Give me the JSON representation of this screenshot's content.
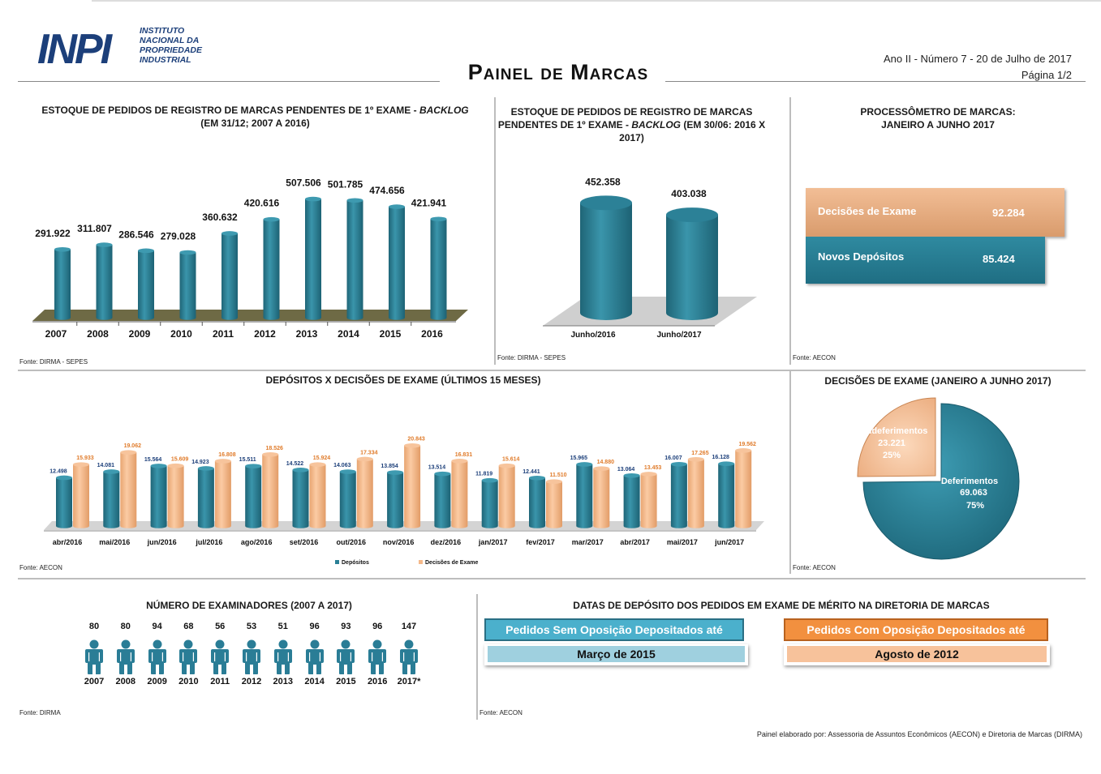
{
  "header": {
    "logo_mark": "INPI",
    "logo_lines": [
      "INSTITUTO",
      "NACIONAL DA",
      "PROPRIEDADE",
      "INDUSTRIAL"
    ],
    "title": "Painel de Marcas",
    "edition": "Ano II - Número 7 - 20 de Julho de 2017",
    "page": "Página 1/2"
  },
  "colors": {
    "teal": "#2a8096",
    "orange": "#f5b98a",
    "orange_text": "#e07b2a",
    "navy": "#1c3f7a"
  },
  "panel_backlog_year": {
    "title_pre": "ESTOQUE DE PEDIDOS DE REGISTRO DE MARCAS PENDENTES DE 1º EXAME - ",
    "title_em": "BACKLOG",
    "subtitle": "(EM 31/12; 2007 A 2016)",
    "fonte": "Fonte: DIRMA - SEPES"
  },
  "panel_backlog_june": {
    "title_line1": "ESTOQUE DE PEDIDOS DE REGISTRO DE MARCAS",
    "title_line2_pre": "PENDENTES DE 1º EXAME - ",
    "title_line2_em": "BACKLOG",
    "title_line2_post": " (EM 30/06: 2016 X 2017)",
    "fonte": "Fonte: DIRMA - SEPES"
  },
  "panel_process": {
    "title_line1": "PROCESSÔMETRO DE MARCAS:",
    "title_line2": "JANEIRO A JUNHO 2017",
    "bars": [
      {
        "label": "Decisões de Exame",
        "value": "92.284",
        "raw": 92284
      },
      {
        "label": "Novos Depósitos",
        "value": "85.424",
        "raw": 85424
      }
    ],
    "fonte": "Fonte: AECON"
  },
  "panel_monthly": {
    "title": "DEPÓSITOS X DECISÕES DE EXAME (ÚLTIMOS 15 MESES)",
    "fonte": "Fonte: AECON"
  },
  "panel_decisions": {
    "title": "DECISÕES DE EXAME (JANEIRO A JUNHO 2017)",
    "fonte": "Fonte: AECON"
  },
  "panel_examiners": {
    "title": "NÚMERO DE EXAMINADORES (2007 A 2017)",
    "years": [
      "2007",
      "2008",
      "2009",
      "2010",
      "2011",
      "2012",
      "2013",
      "2014",
      "2015",
      "2016",
      "2017*"
    ],
    "counts": [
      "80",
      "80",
      "94",
      "68",
      "56",
      "53",
      "51",
      "96",
      "93",
      "96",
      "147"
    ],
    "fonte": "Fonte: DIRMA"
  },
  "panel_dates": {
    "title": "DATAS DE DEPÓSITO DOS PEDIDOS EM EXAME DE MÉRITO NA DIRETORIA DE MARCAS",
    "left_header": "Pedidos Sem Oposição Depositados até",
    "left_value": "Março de 2015",
    "right_header": "Pedidos Com Oposição Depositados até",
    "right_value": "Agosto de 2012",
    "fonte": "Fonte: AECON"
  },
  "footer": "Painel elaborado por: Assessoria de Assuntos Econômicos (AECON) e Diretoria de Marcas (DIRMA)",
  "chart_data": [
    {
      "type": "bar",
      "title": "ESTOQUE DE PEDIDOS DE REGISTRO DE MARCAS PENDENTES DE 1º EXAME - BACKLOG (EM 31/12; 2007 A 2016)",
      "categories": [
        "2007",
        "2008",
        "2009",
        "2010",
        "2011",
        "2012",
        "2013",
        "2014",
        "2015",
        "2016"
      ],
      "values": [
        291922,
        311807,
        286546,
        279028,
        360632,
        420616,
        507506,
        501785,
        474656,
        421941
      ],
      "labels": [
        "291.922",
        "311.807",
        "286.546",
        "279.028",
        "360.632",
        "420.616",
        "507.506",
        "501.785",
        "474.656",
        "421.941"
      ],
      "ylim": [
        0,
        520000
      ]
    },
    {
      "type": "bar",
      "title": "ESTOQUE DE PEDIDOS DE REGISTRO DE MARCAS PENDENTES DE 1º EXAME - BACKLOG (EM 30/06: 2016 X 2017)",
      "categories": [
        "Junho/2016",
        "Junho/2017"
      ],
      "values": [
        452358,
        403038
      ],
      "labels": [
        "452.358",
        "403.038"
      ],
      "ylim": [
        0,
        460000
      ]
    },
    {
      "type": "bar",
      "title": "DEPÓSITOS X DECISÕES DE EXAME (ÚLTIMOS 15 MESES)",
      "categories": [
        "abr/2016",
        "mai/2016",
        "jun/2016",
        "jul/2016",
        "ago/2016",
        "set/2016",
        "out/2016",
        "nov/2016",
        "dez/2016",
        "jan/2017",
        "fev/2017",
        "mar/2017",
        "abr/2017",
        "mai/2017",
        "jun/2017"
      ],
      "series": [
        {
          "name": "Depósitos",
          "values": [
            12498,
            14081,
            15564,
            14923,
            15511,
            14522,
            14063,
            13854,
            13514,
            11819,
            12441,
            15965,
            13064,
            16007,
            16128
          ],
          "labels": [
            "12.498",
            "14.081",
            "15.564",
            "14.923",
            "15.511",
            "14.522",
            "14.063",
            "13.854",
            "13.514",
            "11.819",
            "12.441",
            "15.965",
            "13.064",
            "16.007",
            "16.128"
          ]
        },
        {
          "name": "Decisões de Exame",
          "values": [
            15933,
            19062,
            15609,
            16808,
            18526,
            15924,
            17334,
            20843,
            16831,
            15614,
            11510,
            14880,
            13453,
            17265,
            19562
          ],
          "labels": [
            "15.933",
            "19.062",
            "15.609",
            "16.808",
            "18.526",
            "15.924",
            "17.334",
            "20.843",
            "16.831",
            "15.614",
            "11.510",
            "14.880",
            "13.453",
            "17.265",
            "19.562"
          ]
        }
      ],
      "ylim": [
        0,
        21000
      ]
    },
    {
      "type": "pie",
      "title": "DECISÕES DE EXAME (JANEIRO A JUNHO 2017)",
      "slices": [
        {
          "name": "Deferimentos",
          "value": 69063,
          "label": "69.063",
          "pct": "75%"
        },
        {
          "name": "Indeferimentos",
          "value": 23221,
          "label": "23.221",
          "pct": "25%"
        }
      ]
    }
  ]
}
